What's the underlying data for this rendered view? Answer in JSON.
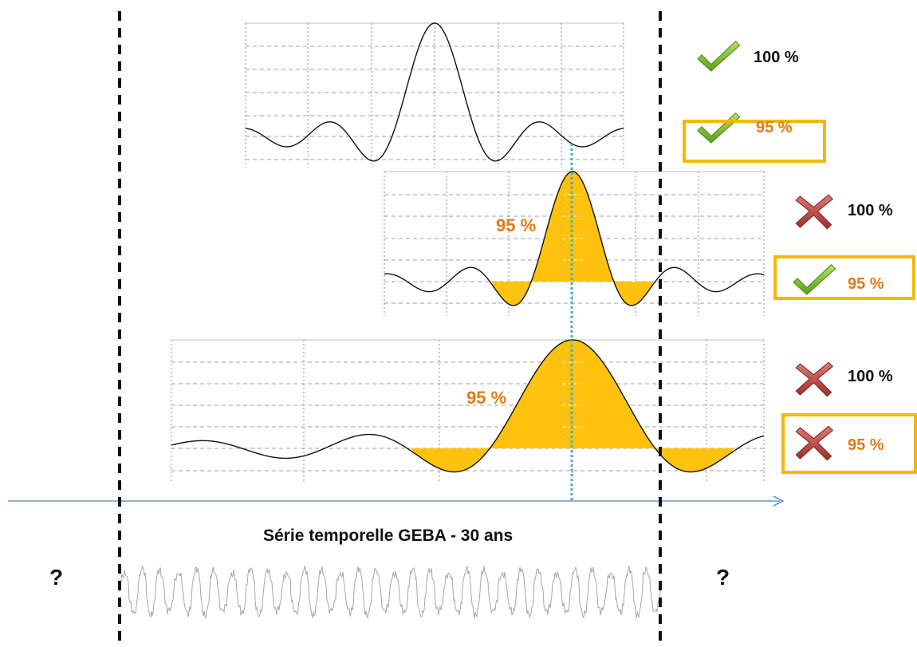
{
  "colors": {
    "highlight_fill": "#ffc20e",
    "box_border": "#f5b800",
    "orange_text": "#e07a1a",
    "check_green": "#7cbf2a",
    "cross_red": "#c0504d",
    "axis_arrow": "#4f81bd",
    "center_line": "#4bacc6",
    "series_gray": "#a6a6a6"
  },
  "panels": [
    {
      "id": "panel-1",
      "window": "narrow",
      "in_plot_label": "",
      "results": [
        {
          "status": "check",
          "label": "100 %",
          "boxed": false
        },
        {
          "status": "check",
          "label": "95 %",
          "boxed": true
        }
      ]
    },
    {
      "id": "panel-2",
      "window": "medium",
      "in_plot_label": "95 %",
      "results": [
        {
          "status": "cross",
          "label": "100 %",
          "boxed": false
        },
        {
          "status": "check",
          "label": "95 %",
          "boxed": true
        }
      ]
    },
    {
      "id": "panel-3",
      "window": "wide",
      "in_plot_label": "95 %",
      "results": [
        {
          "status": "cross",
          "label": "100 %",
          "boxed": false
        },
        {
          "status": "cross",
          "label": "95 %",
          "boxed": true
        }
      ]
    }
  ],
  "series_label": "Série temporelle GEBA - 30 ans",
  "unknown_left": "?",
  "unknown_right": "?",
  "icons": {
    "check": "check-icon",
    "cross": "cross-icon",
    "arrow": "time-axis-arrow"
  }
}
